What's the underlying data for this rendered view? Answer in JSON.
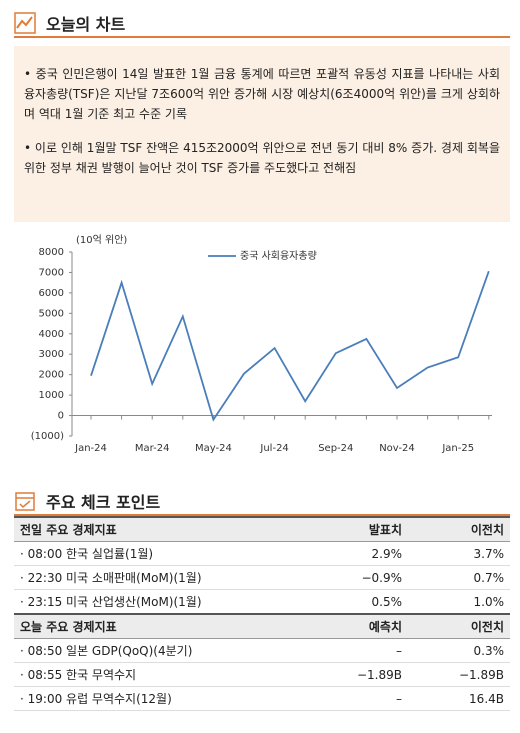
{
  "header": {
    "title": "오늘의 차트"
  },
  "bullets": [
    "• 중국 인민은행이 14일 발표한 1월 금융 통계에 따르면 포괄적 유동성 지표를 나타내는 사회융자총량(TSF)은 지난달 7조600억 위안 증가해 시장 예상치(6조4000억 위안)를 크게 상회하며 역대 1월 기준 최고 수준 기록",
    "• 이로 인해 1월말 TSF 잔액은 415조2000억 위안으로 전년 동기 대비 8% 증가. 경제 회복을 위한 정부 채권 발행이 늘어난 것이 TSF 증가를 주도했다고 전해짐"
  ],
  "chart_data": {
    "type": "line",
    "y_label": "(10억 위안)",
    "categories": [
      "Jan-24",
      null,
      "Mar-24",
      null,
      "May-24",
      null,
      "Jul-24",
      null,
      "Sep-24",
      null,
      "Nov-24",
      null,
      "Jan-25",
      null
    ],
    "series": [
      {
        "name": "중국 사회융자총량",
        "color": "#4a7ebb",
        "values": [
          1950,
          6500,
          1550,
          4850,
          -200,
          2050,
          3300,
          700,
          3050,
          3750,
          1350,
          2350,
          2850,
          7060
        ]
      }
    ],
    "ylim": [
      -1000,
      8000
    ],
    "yticks": [
      {
        "value": -1000,
        "label": "(1000)"
      },
      0,
      1000,
      2000,
      3000,
      4000,
      5000,
      6000,
      7000,
      8000
    ],
    "legend": "top"
  },
  "section2": {
    "title": "주요 체크 포인트"
  },
  "table": {
    "sections": [
      {
        "header": [
          "전일 주요 경제지표",
          "발표치",
          "이전치"
        ],
        "rows": [
          [
            "· 08:00 한국 실업률(1월)",
            "2.9%",
            "3.7%"
          ],
          [
            "· 22:30 미국 소매판매(MoM)(1월)",
            "−0.9%",
            "0.7%"
          ],
          [
            "· 23:15 미국 산업생산(MoM)(1월)",
            "0.5%",
            "1.0%"
          ]
        ]
      },
      {
        "header": [
          "오늘 주요 경제지표",
          "예측치",
          "이전치"
        ],
        "rows": [
          [
            "· 08:50 일본 GDP(QoQ)(4분기)",
            "–",
            "0.3%"
          ],
          [
            "· 08:55 한국 무역수지",
            "−1.89B",
            "−1.89B"
          ],
          [
            "· 19:00 유럽 무역수지(12월)",
            "–",
            "16.4B"
          ]
        ]
      }
    ]
  }
}
